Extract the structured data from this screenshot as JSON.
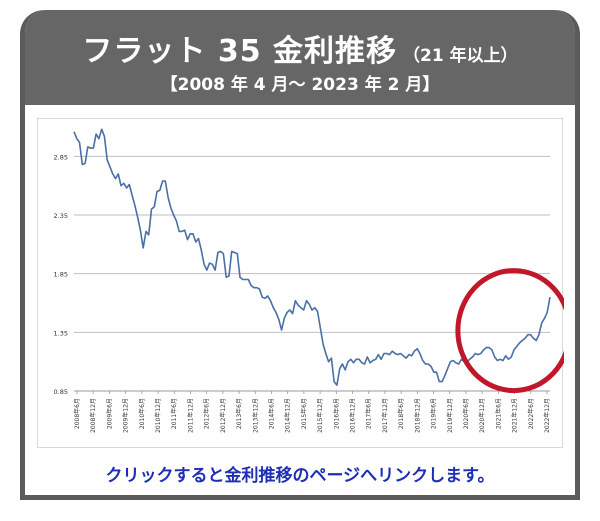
{
  "header": {
    "title": "フラット 35 金利推移",
    "title_sub": "（21 年以上）",
    "period": "【2008 年 4 月～ 2023 年 2 月】"
  },
  "link": {
    "text": "クリックすると金利推移のページへリンクします。"
  },
  "colors": {
    "header_bg": "#666666",
    "line": "#4a6fa5",
    "highlight_circle": "#c0182a",
    "link_text": "#1f2fb5"
  },
  "chart_data": {
    "type": "line",
    "title": "",
    "xlabel": "",
    "ylabel": "",
    "ylim": [
      0.85,
      3.1
    ],
    "yticks": [
      0.85,
      1.35,
      1.85,
      2.35,
      2.85
    ],
    "ytick_labels": [
      "0.85",
      "1.35",
      "1.85",
      "2.35",
      "2.85"
    ],
    "grid": true,
    "xtick_labels": [
      "2008年6月",
      "2008年12月",
      "2009年6月",
      "2009年12月",
      "2010年6月",
      "2010年12月",
      "2011年6月",
      "2011年12月",
      "2012年6月",
      "2012年12月",
      "2013年6月",
      "2013年12月",
      "2014年6月",
      "2014年12月",
      "2015年6月",
      "2015年12月",
      "2016年6月",
      "2016年12月",
      "2017年6月",
      "2017年12月",
      "2018年6月",
      "2018年12月",
      "2019年6月",
      "2019年12月",
      "2020年6月",
      "2020年12月",
      "2021年6月",
      "2021年12月",
      "2022年6月",
      "2022年12月"
    ],
    "series": [
      {
        "values": [
          3.06,
          3.0,
          2.97,
          2.78,
          2.79,
          2.93,
          2.92,
          2.92,
          3.04,
          3.0,
          3.08,
          3.02,
          2.82,
          2.76,
          2.7,
          2.66,
          2.7,
          2.6,
          2.62,
          2.58,
          2.61,
          2.52,
          2.43,
          2.33,
          2.22,
          2.07,
          2.21,
          2.18,
          2.4,
          2.42,
          2.55,
          2.56,
          2.64,
          2.64,
          2.5,
          2.41,
          2.35,
          2.3,
          2.21,
          2.21,
          2.22,
          2.14,
          2.19,
          2.19,
          2.12,
          2.15,
          2.05,
          1.93,
          1.88,
          1.94,
          1.93,
          1.88,
          2.03,
          2.04,
          2.02,
          1.82,
          1.83,
          2.04,
          2.03,
          2.02,
          1.82,
          1.8,
          1.8,
          1.8,
          1.75,
          1.73,
          1.73,
          1.72,
          1.65,
          1.64,
          1.66,
          1.62,
          1.56,
          1.52,
          1.46,
          1.37,
          1.47,
          1.52,
          1.54,
          1.51,
          1.62,
          1.58,
          1.56,
          1.54,
          1.62,
          1.59,
          1.54,
          1.56,
          1.53,
          1.39,
          1.25,
          1.17,
          1.1,
          1.13,
          0.93,
          0.9,
          1.04,
          1.08,
          1.03,
          1.1,
          1.12,
          1.09,
          1.12,
          1.12,
          1.09,
          1.08,
          1.14,
          1.09,
          1.11,
          1.12,
          1.16,
          1.12,
          1.17,
          1.17,
          1.16,
          1.19,
          1.17,
          1.16,
          1.17,
          1.15,
          1.13,
          1.16,
          1.15,
          1.19,
          1.21,
          1.17,
          1.11,
          1.08,
          1.08,
          1.06,
          1.01,
          1.01,
          0.93,
          0.93,
          0.98,
          1.04,
          1.1,
          1.11,
          1.09,
          1.08,
          1.12,
          1.1,
          1.1,
          1.12,
          1.14,
          1.17,
          1.16,
          1.17,
          1.2,
          1.22,
          1.22,
          1.2,
          1.14,
          1.11,
          1.12,
          1.11,
          1.15,
          1.12,
          1.14,
          1.2,
          1.23,
          1.26,
          1.28,
          1.3,
          1.33,
          1.33,
          1.3,
          1.28,
          1.33,
          1.43,
          1.47,
          1.52,
          1.65
        ]
      }
    ],
    "annotation": "red-circle-recent-rise"
  }
}
